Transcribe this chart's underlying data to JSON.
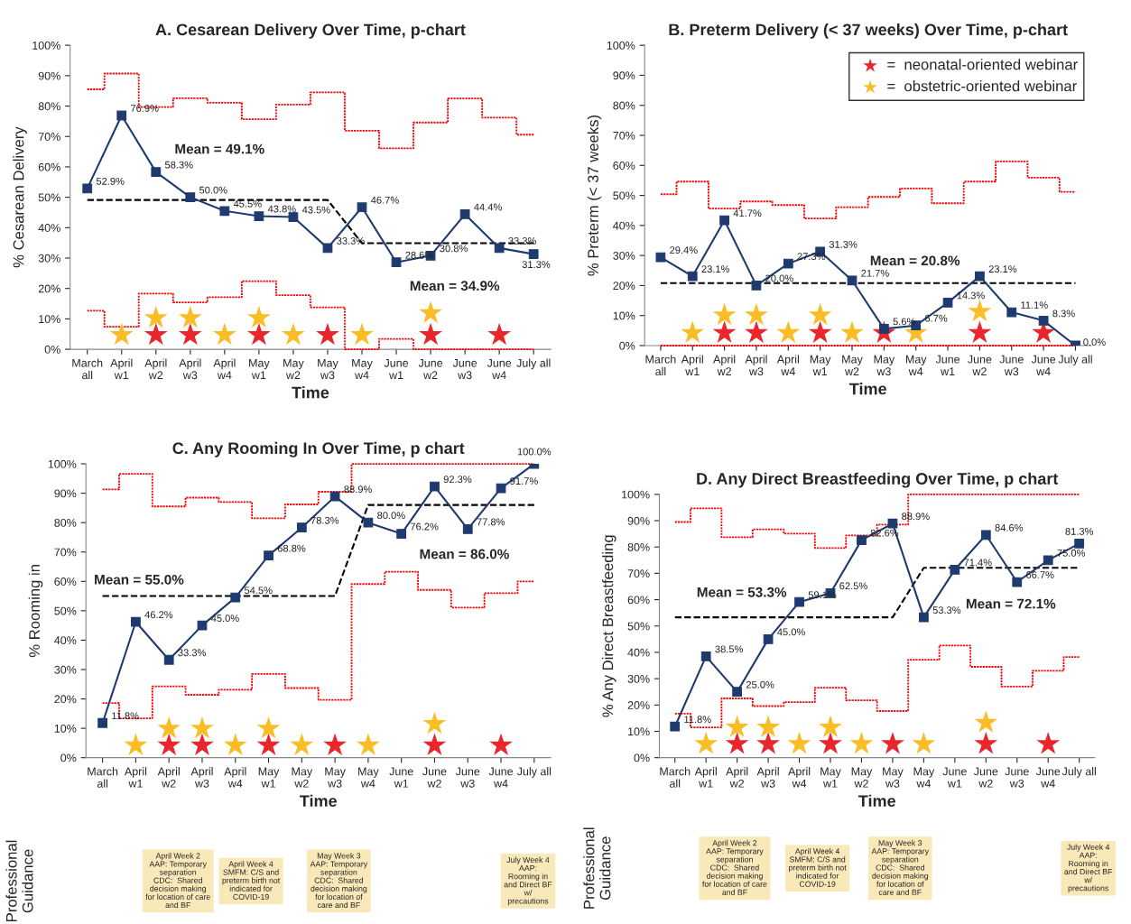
{
  "chart_data": [
    {
      "type": "line",
      "title": "A. Cesarean Delivery Over Time, p-chart",
      "xlabel": "Time",
      "ylabel": "% Cesarean Delivery",
      "categories": [
        "March\nall",
        "April\nw1",
        "April\nw2",
        "April\nw3",
        "April\nw4",
        "May\nw1",
        "May\nw2",
        "May\nw3",
        "May\nw4",
        "June\nw1",
        "June\nw2",
        "June\nw3",
        "June\nw4",
        "July all"
      ],
      "ylim": [
        0,
        100
      ],
      "yticks": [
        {
          "value": 0,
          "label": "0%"
        },
        {
          "value": 10,
          "label": "10%"
        },
        {
          "value": 20,
          "label": "20%"
        },
        {
          "value": 30,
          "label": "30%"
        },
        {
          "value": 40,
          "label": "40%"
        },
        {
          "value": 50,
          "label": "50%"
        },
        {
          "value": 60,
          "label": "60%"
        },
        {
          "value": 70,
          "label": "70%"
        },
        {
          "value": 80,
          "label": "80%"
        },
        {
          "value": 90,
          "label": "90%"
        },
        {
          "value": 100,
          "label": "100%"
        }
      ],
      "grid": false,
      "legend": false,
      "series": [
        {
          "type": "step",
          "color": "#ff0000",
          "line_style": "dotted",
          "marker": "none",
          "values": [
            85.5,
            90.7,
            79.7,
            82.6,
            81.1,
            75.7,
            80.5,
            84.5,
            71.9,
            66.1,
            74.6,
            82.5,
            76.2,
            70.6
          ]
        },
        {
          "type": "step",
          "color": "#ff0000",
          "line_style": "dotted",
          "marker": "none",
          "values": [
            12.7,
            7.4,
            18.3,
            15.4,
            17.1,
            22.4,
            17.8,
            13.8,
            0,
            3.4,
            0,
            0,
            0,
            0
          ]
        },
        {
          "type": "line",
          "color": "#000000",
          "line_style": "dashed",
          "marker": "none",
          "values": [
            49.1,
            49.1,
            49.1,
            49.1,
            49.1,
            49.1,
            49.1,
            49.1,
            34.9,
            34.9,
            34.9,
            34.9,
            34.9,
            34.9
          ]
        },
        {
          "color": "#1f3a6e",
          "line_style": "solid",
          "marker": "square",
          "values": [
            52.9,
            76.9,
            58.3,
            50.0,
            45.5,
            43.8,
            43.5,
            33.3,
            46.7,
            28.6,
            30.8,
            44.4,
            33.3,
            31.3
          ],
          "value_labels": [
            "52.9%",
            "76.9%",
            "58.3%",
            "50.0%",
            "45.5%",
            "43.8%",
            "43.5%",
            "33.3%",
            "46.7%",
            "28.6%",
            "30.8%",
            "44.4%",
            "33.3%",
            "31.3%"
          ]
        },
        {
          "type": "scatter",
          "color": "#e8262b",
          "marker": "star",
          "values": [
            null,
            null,
            4.7,
            4.7,
            null,
            4.7,
            null,
            4.7,
            null,
            null,
            4.7,
            null,
            4.7,
            null
          ]
        },
        {
          "type": "scatter",
          "color": "#fbbd26",
          "marker": "star",
          "values": [
            null,
            4.7,
            10.3,
            10.3,
            4.7,
            10.3,
            4.7,
            null,
            4.7,
            null,
            11.9,
            null,
            null,
            null
          ]
        }
      ],
      "annotations": [
        "Mean = 49.1%",
        "Mean = 34.9%"
      ]
    },
    {
      "type": "line",
      "title": "B. Preterm Delivery (< 37 weeks) Over Time, p-chart",
      "xlabel": "Time",
      "ylabel": "% Preterm (< 37 weeks)",
      "categories": [
        "March\nall",
        "April\nw1",
        "April\nw2",
        "April\nw3",
        "April\nw4",
        "May\nw1",
        "May\nw2",
        "May\nw3",
        "May\nw4",
        "June\nw1",
        "June\nw2",
        "June\nw3",
        "June\nw4",
        "July all"
      ],
      "ylim": [
        0,
        100
      ],
      "yticks": [
        {
          "value": 0,
          "label": "0%"
        },
        {
          "value": 10,
          "label": "10%"
        },
        {
          "value": 20,
          "label": "20%"
        },
        {
          "value": 30,
          "label": "30%"
        },
        {
          "value": 40,
          "label": "40%"
        },
        {
          "value": 50,
          "label": "50%"
        },
        {
          "value": 60,
          "label": "60%"
        },
        {
          "value": 70,
          "label": "70%"
        },
        {
          "value": 80,
          "label": "80%"
        },
        {
          "value": 90,
          "label": "90%"
        },
        {
          "value": 100,
          "label": "100%"
        }
      ],
      "grid": false,
      "legend": "top right",
      "series": [
        {
          "type": "step",
          "color": "#ff0000",
          "line_style": "dotted",
          "marker": "none",
          "values": [
            50.4,
            54.6,
            45.6,
            48.0,
            46.8,
            42.3,
            46.1,
            49.5,
            52.3,
            47.4,
            54.6,
            61.3,
            55.9,
            51.2
          ]
        },
        {
          "type": "step",
          "color": "#ff0000",
          "line_style": "dotted",
          "marker": "none",
          "values": [
            0,
            0,
            0,
            0,
            0,
            0,
            0,
            0,
            0,
            0,
            0,
            0,
            0,
            0
          ]
        },
        {
          "type": "line",
          "color": "#000000",
          "line_style": "dashed",
          "marker": "none",
          "values": [
            20.8,
            20.8,
            20.8,
            20.8,
            20.8,
            20.8,
            20.8,
            20.8,
            20.8,
            20.8,
            20.8,
            20.8,
            20.8,
            20.8
          ]
        },
        {
          "color": "#1f3a6e",
          "line_style": "solid",
          "marker": "square",
          "values": [
            29.4,
            23.1,
            41.7,
            20.0,
            27.3,
            31.3,
            21.7,
            5.6,
            6.7,
            14.3,
            23.1,
            11.1,
            8.3,
            0.0
          ],
          "value_labels": [
            "29.4%",
            "23.1%",
            "41.7%",
            "20.0%",
            "27.3%",
            "31.3%",
            "21.7%",
            "5.6%",
            "6.7%",
            "14.3%",
            "23.1%",
            "11.1%",
            "8.3%",
            "0.0%"
          ]
        },
        {
          "type": "scatter",
          "name": "=  neonatal-oriented webinar",
          "color": "#e8262b",
          "marker": "star",
          "values": [
            null,
            null,
            4.2,
            4.2,
            null,
            4.2,
            null,
            4.2,
            null,
            null,
            4.2,
            null,
            4.2,
            null
          ]
        },
        {
          "type": "scatter",
          "name": "=  obstetric-oriented webinar",
          "color": "#fbbd26",
          "marker": "star",
          "values": [
            null,
            4.2,
            10.1,
            10.1,
            4.2,
            10.1,
            4.2,
            null,
            4.2,
            null,
            11.3,
            null,
            null,
            null
          ]
        }
      ],
      "annotations": [
        "Mean = 20.8%"
      ]
    },
    {
      "type": "line",
      "title": "C. Any Rooming In Over Time, p chart",
      "xlabel": "Time",
      "ylabel": "% Rooming in",
      "categories": [
        "March\nall",
        "April\nw1",
        "April\nw2",
        "April\nw3",
        "April\nw4",
        "May\nw1",
        "May\nw2",
        "May\nw3",
        "May\nw4",
        "June\nw1",
        "June\nw2",
        "June\nw3",
        "June\nw4",
        "July all"
      ],
      "ylim": [
        0,
        100
      ],
      "yticks": [
        {
          "value": 0,
          "label": "0%"
        },
        {
          "value": 10,
          "label": "10%"
        },
        {
          "value": 20,
          "label": "20%"
        },
        {
          "value": 30,
          "label": "30%"
        },
        {
          "value": 40,
          "label": "40%"
        },
        {
          "value": 50,
          "label": "50%"
        },
        {
          "value": 60,
          "label": "60%"
        },
        {
          "value": 70,
          "label": "70%"
        },
        {
          "value": 80,
          "label": "80%"
        },
        {
          "value": 90,
          "label": "90%"
        },
        {
          "value": 100,
          "label": "100%"
        }
      ],
      "grid": false,
      "legend": false,
      "series": [
        {
          "type": "step",
          "color": "#ff0000",
          "line_style": "dotted",
          "marker": "none",
          "values": [
            91.3,
            96.6,
            85.5,
            88.5,
            87.0,
            81.5,
            86.2,
            90.5,
            100,
            100,
            100,
            100,
            100,
            100
          ]
        },
        {
          "type": "step",
          "color": "#ff0000",
          "line_style": "dotted",
          "marker": "none",
          "values": [
            18.6,
            13.4,
            24.3,
            21.4,
            23.1,
            28.5,
            23.7,
            19.7,
            59.1,
            63.3,
            57.1,
            51.1,
            56.0,
            60.0
          ]
        },
        {
          "type": "line",
          "color": "#000000",
          "line_style": "dashed",
          "marker": "none",
          "values": [
            55.0,
            55.0,
            55.0,
            55.0,
            55.0,
            55.0,
            55.0,
            55.0,
            86.0,
            86.0,
            86.0,
            86.0,
            86.0,
            86.0
          ]
        },
        {
          "color": "#1f3a6e",
          "line_style": "solid",
          "marker": "square",
          "values": [
            11.8,
            46.2,
            33.3,
            45.0,
            54.5,
            68.8,
            78.3,
            88.9,
            80.0,
            76.2,
            92.3,
            77.8,
            91.7,
            100.0
          ],
          "value_labels": [
            "11.8%",
            "46.2%",
            "33.3%",
            "45.0%",
            "54.5%",
            "68.8%",
            "78.3%",
            "88.9%",
            "80.0%",
            "76.2%",
            "92.3%",
            "77.8%",
            "91.7%",
            "100.0%"
          ]
        },
        {
          "type": "scatter",
          "color": "#e8262b",
          "marker": "star",
          "values": [
            null,
            null,
            4.2,
            4.2,
            null,
            4.2,
            null,
            4.2,
            null,
            null,
            4.2,
            null,
            4.2,
            null
          ]
        },
        {
          "type": "scatter",
          "color": "#fbbd26",
          "marker": "star",
          "values": [
            null,
            4.2,
            9.9,
            9.9,
            4.2,
            9.9,
            4.2,
            null,
            4.2,
            null,
            11.5,
            null,
            null,
            null
          ]
        }
      ],
      "annotations": [
        "Mean = 55.0%",
        "Mean = 86.0%",
        "Professional\nGuidance",
        "April Week 2\nAAP: Temporary\nseparation\nCDC:  Shared\ndecision making\nfor location of care\nand BF",
        "April Week 4\nSMFM: C/S and\npreterm birth not\nindicated for\nCOVID-19",
        "May Week 3\nAAP: Temporary\nseparation\nCDC:  Shared\ndecision making\nfor location of\ncare and BF",
        "July Week 4\nAAP:\nRooming in\nand Direct BF\nw/\nprecautions"
      ]
    },
    {
      "type": "line",
      "title": "D. Any Direct Breastfeeding Over Time, p chart",
      "xlabel": "Time",
      "ylabel": "% Any Direct Breastfeeding",
      "categories": [
        "March\nall",
        "April\nw1",
        "April\nw2",
        "April\nw3",
        "April\nw4",
        "May\nw1",
        "May\nw2",
        "May\nw3",
        "May\nw4",
        "June\nw1",
        "June\nw2",
        "June\nw3",
        "June\nw4",
        "July all"
      ],
      "ylim": [
        0,
        100
      ],
      "yticks": [
        {
          "value": 0,
          "label": "0%"
        },
        {
          "value": 10,
          "label": "10%"
        },
        {
          "value": 20,
          "label": "20%"
        },
        {
          "value": 30,
          "label": "30%"
        },
        {
          "value": 40,
          "label": "40%"
        },
        {
          "value": 50,
          "label": "50%"
        },
        {
          "value": 60,
          "label": "60%"
        },
        {
          "value": 70,
          "label": "70%"
        },
        {
          "value": 80,
          "label": "80%"
        },
        {
          "value": 90,
          "label": "90%"
        },
        {
          "value": 100,
          "label": "100%"
        }
      ],
      "grid": false,
      "legend": false,
      "series": [
        {
          "type": "step",
          "color": "#ff0000",
          "line_style": "dotted",
          "marker": "none",
          "values": [
            89.5,
            94.7,
            83.7,
            86.7,
            85.1,
            79.6,
            84.4,
            88.5,
            100,
            100,
            100,
            100,
            100,
            100
          ]
        },
        {
          "type": "step",
          "color": "#ff0000",
          "line_style": "dotted",
          "marker": "none",
          "values": [
            16.7,
            11.5,
            22.5,
            19.6,
            21.1,
            26.6,
            21.8,
            17.7,
            37.2,
            42.6,
            34.5,
            27.0,
            33.0,
            38.2
          ]
        },
        {
          "type": "line",
          "color": "#000000",
          "line_style": "dashed",
          "marker": "none",
          "values": [
            53.3,
            53.3,
            53.3,
            53.3,
            53.3,
            53.3,
            53.3,
            53.3,
            72.1,
            72.1,
            72.1,
            72.1,
            72.1,
            72.1
          ]
        },
        {
          "color": "#1f3a6e",
          "line_style": "solid",
          "marker": "square",
          "values": [
            11.8,
            38.5,
            25.0,
            45.0,
            59.1,
            62.5,
            82.6,
            88.9,
            53.3,
            71.4,
            84.6,
            66.7,
            75.0,
            81.3
          ],
          "value_labels": [
            "11.8%",
            "38.5%",
            "25.0%",
            "45.0%",
            "59.1%",
            "62.5%",
            "82.6%",
            "88.9%",
            "53.3%",
            "71.4%",
            "84.6%",
            "66.7%",
            "75.0%",
            "81.3%"
          ]
        },
        {
          "type": "scatter",
          "color": "#e8262b",
          "marker": "star",
          "values": [
            null,
            null,
            5.2,
            5.2,
            null,
            5.2,
            null,
            5.2,
            null,
            null,
            5.2,
            null,
            5.2,
            null
          ]
        },
        {
          "type": "scatter",
          "color": "#fbbd26",
          "marker": "star",
          "values": [
            null,
            5.2,
            11.5,
            11.5,
            5.2,
            11.5,
            5.2,
            null,
            5.2,
            null,
            13.3,
            null,
            null,
            null
          ]
        }
      ],
      "annotations": [
        "Mean = 53.3%",
        "Mean = 72.1%",
        "Professional\nGuidance",
        "April Week 2\nAAP: Temporary\nseparation\nCDC:  Shared\ndecision making\nfor location of care\nand BF",
        "April Week 4\nSMFM: C/S and\npreterm birth not\nindicated for\nCOVID-19",
        "May Week 3\nAAP: Temporary\nseparation\nCDC:  Shared\ndecision making\nfor location of\ncare and BF",
        "July Week 4\nAAP:\nRooming in\nand Direct BF\nw/\nprecautions"
      ]
    }
  ]
}
